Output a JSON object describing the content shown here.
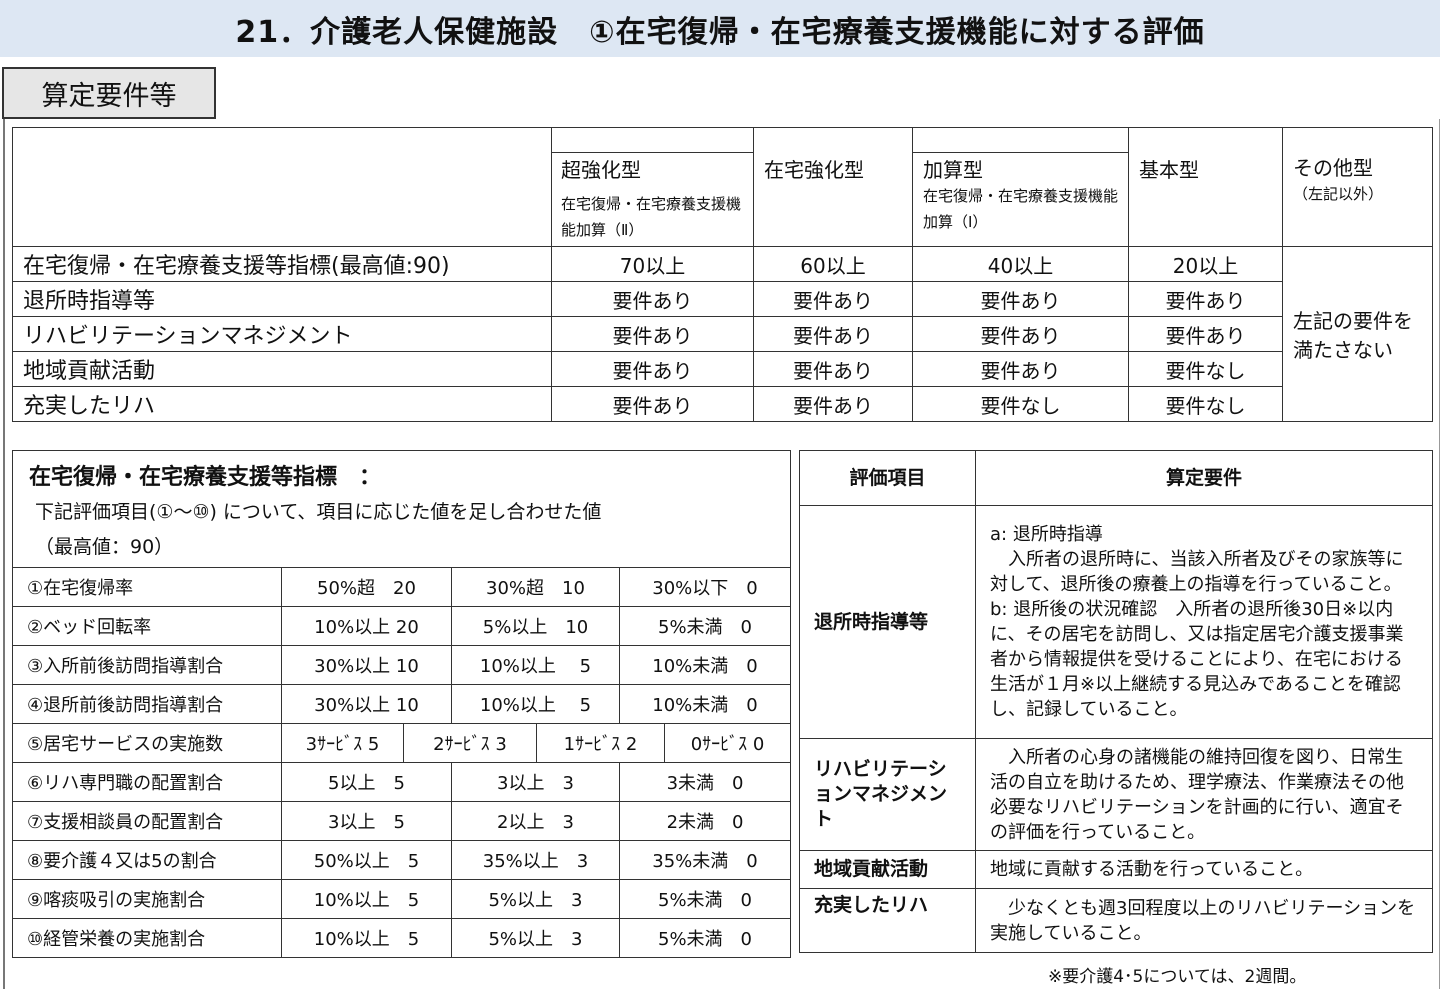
{
  "title": "21．介護老人保健施設　①在宅復帰・在宅療養支援機能に対する評価",
  "section_label": "算定要件等",
  "types_table": {
    "headers": [
      {
        "name": "超強化型",
        "sub": "在宅復帰・在宅療養支援機能加算（Ⅱ）"
      },
      {
        "name": "在宅強化型",
        "sub": ""
      },
      {
        "name": "加算型",
        "sub": "在宅復帰・在宅療養支援機能加算（Ⅰ）"
      },
      {
        "name": "基本型",
        "sub": ""
      },
      {
        "name": "その他型",
        "sub": "（左記以外）"
      }
    ],
    "rows": [
      {
        "label": "在宅復帰・在宅療養支援等指標(最高値:90)",
        "values": [
          "70以上",
          "60以上",
          "40以上",
          "20以上"
        ]
      },
      {
        "label": "退所時指導等",
        "values": [
          "要件あり",
          "要件あり",
          "要件あり",
          "要件あり"
        ]
      },
      {
        "label": "リハビリテーションマネジメント",
        "values": [
          "要件あり",
          "要件あり",
          "要件あり",
          "要件あり"
        ]
      },
      {
        "label": "地域貢献活動",
        "values": [
          "要件あり",
          "要件あり",
          "要件あり",
          "要件なし"
        ]
      },
      {
        "label": "充実したリハ",
        "values": [
          "要件あり",
          "要件あり",
          "要件なし",
          "要件なし"
        ]
      }
    ],
    "other_note": "左記の要件を満たさない"
  },
  "index_table": {
    "title": "在宅復帰・在宅療養支援等指標　：",
    "desc": "下記評価項目(①～⑩) について、項目に応じた値を足し合わせた値",
    "max": "（最高値：90）",
    "rows": [
      {
        "label": "①在宅復帰率",
        "values": [
          "50%超　20",
          "30%超　10",
          "30%以下　0"
        ]
      },
      {
        "label": "②ベッド回転率",
        "values": [
          "10%以上 20",
          "5%以上　10",
          "5%未満　0"
        ]
      },
      {
        "label": "③入所前後訪問指導割合",
        "values": [
          "30%以上 10",
          "10%以上　 5",
          "10%未満　0"
        ]
      },
      {
        "label": "④退所前後訪問指導割合",
        "values": [
          "30%以上 10",
          "10%以上　 5",
          "10%未満　0"
        ]
      },
      {
        "label": "⑤居宅サービスの実施数",
        "values": [
          "3ｻｰﾋﾞｽ 5",
          "2ｻｰﾋﾞｽ 3",
          "1ｻｰﾋﾞｽ 2",
          "0ｻｰﾋﾞｽ 0"
        ]
      },
      {
        "label": "⑥リハ専門職の配置割合",
        "values": [
          "5以上　5",
          "3以上　3",
          "3未満　0"
        ]
      },
      {
        "label": "⑦支援相談員の配置割合",
        "values": [
          "3以上　5",
          "2以上　3",
          "2未満　0"
        ]
      },
      {
        "label": "⑧要介護４又は5の割合",
        "values": [
          "50%以上　5",
          "35%以上　3",
          "35%未満　0"
        ]
      },
      {
        "label": "⑨喀痰吸引の実施割合",
        "values": [
          "10%以上　5",
          "5%以上　3",
          "5%未満　0"
        ]
      },
      {
        "label": "⑩経管栄養の実施割合",
        "values": [
          "10%以上　5",
          "5%以上　3",
          "5%未満　0"
        ]
      }
    ]
  },
  "req_table": {
    "headers": [
      "評価項目",
      "算定要件"
    ],
    "rows": [
      {
        "item": "退所時指導等",
        "a_title": "a: 退所時指導",
        "a_text": "　入所者の退所時に、当該入所者及びその家族等に対して、退所後の療養上の指導を行っていること。",
        "b_title": "b: 退所後の状況確認",
        "b_text": "入所者の退所後30日※以内に、その居宅を訪問し、又は指定居宅介護支援事業者から情報提供を受けることにより、在宅における生活が１月※以上継続する見込みであることを確認し、記録していること。"
      },
      {
        "item": "リハビリテーションマネジメント",
        "text": "　入所者の心身の諸機能の維持回復を図り、日常生活の自立を助けるため、理学療法、作業療法その他必要なリハビリテーションを計画的に行い、適宜その評価を行っていること。"
      },
      {
        "item": "地域貢献活動",
        "text": "地域に貢献する活動を行っていること。"
      },
      {
        "item": "充実したリハ",
        "text": "　少なくとも週3回程度以上のリハビリテーションを実施していること。"
      }
    ]
  },
  "footnote": "※要介護4･5については、2週間。"
}
